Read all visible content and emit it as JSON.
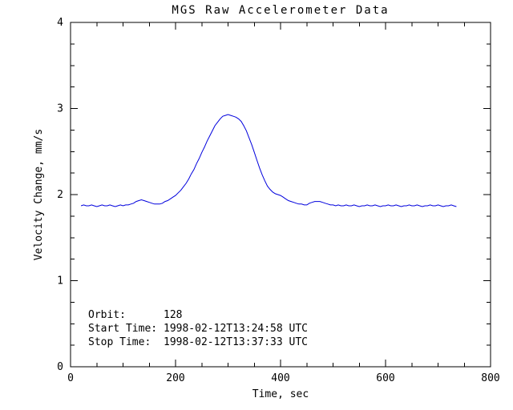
{
  "page": {
    "background": "#ffffff"
  },
  "chart_data": {
    "type": "line",
    "title": "MGS Raw Accelerometer Data",
    "xlabel": "Time, sec",
    "ylabel": "Velocity Change, mm/s",
    "xlim": [
      0,
      800
    ],
    "ylim": [
      0,
      4
    ],
    "xticks": [
      0,
      200,
      400,
      600,
      800
    ],
    "yticks": [
      0,
      1,
      2,
      3,
      4
    ],
    "x_minor_interval": 50,
    "y_minor_interval": 0.25,
    "grid": false,
    "legend": "none",
    "line_color": "#0000dd",
    "frame_color": "#000000",
    "series": [
      {
        "name": "velocity change",
        "x_start": 20,
        "x_step": 5,
        "y": [
          1.87,
          1.88,
          1.87,
          1.87,
          1.88,
          1.87,
          1.86,
          1.87,
          1.88,
          1.87,
          1.87,
          1.88,
          1.87,
          1.86,
          1.87,
          1.88,
          1.87,
          1.88,
          1.88,
          1.89,
          1.9,
          1.92,
          1.93,
          1.94,
          1.93,
          1.92,
          1.91,
          1.9,
          1.89,
          1.89,
          1.89,
          1.9,
          1.92,
          1.93,
          1.95,
          1.97,
          1.99,
          2.02,
          2.05,
          2.09,
          2.13,
          2.18,
          2.24,
          2.29,
          2.36,
          2.42,
          2.49,
          2.55,
          2.62,
          2.68,
          2.74,
          2.8,
          2.84,
          2.88,
          2.91,
          2.92,
          2.93,
          2.92,
          2.91,
          2.9,
          2.88,
          2.85,
          2.8,
          2.74,
          2.66,
          2.58,
          2.49,
          2.4,
          2.31,
          2.23,
          2.16,
          2.1,
          2.06,
          2.03,
          2.01,
          2.0,
          1.99,
          1.97,
          1.95,
          1.93,
          1.92,
          1.91,
          1.9,
          1.89,
          1.89,
          1.88,
          1.88,
          1.9,
          1.91,
          1.92,
          1.92,
          1.92,
          1.91,
          1.9,
          1.89,
          1.88,
          1.88,
          1.87,
          1.88,
          1.87,
          1.87,
          1.88,
          1.87,
          1.87,
          1.88,
          1.87,
          1.86,
          1.87,
          1.87,
          1.88,
          1.87,
          1.87,
          1.88,
          1.87,
          1.86,
          1.87,
          1.87,
          1.88,
          1.87,
          1.87,
          1.88,
          1.87,
          1.86,
          1.87,
          1.87,
          1.88,
          1.87,
          1.87,
          1.88,
          1.87,
          1.86,
          1.87,
          1.87,
          1.88,
          1.87,
          1.87,
          1.88,
          1.87,
          1.86,
          1.87,
          1.87,
          1.88,
          1.87,
          1.86
        ]
      }
    ],
    "annotations": [
      {
        "label": "Orbit:",
        "value": "128"
      },
      {
        "label": "Start Time:",
        "value": "1998-02-12T13:24:58 UTC"
      },
      {
        "label": "Stop Time:",
        "value": "1998-02-12T13:37:33 UTC"
      }
    ]
  }
}
